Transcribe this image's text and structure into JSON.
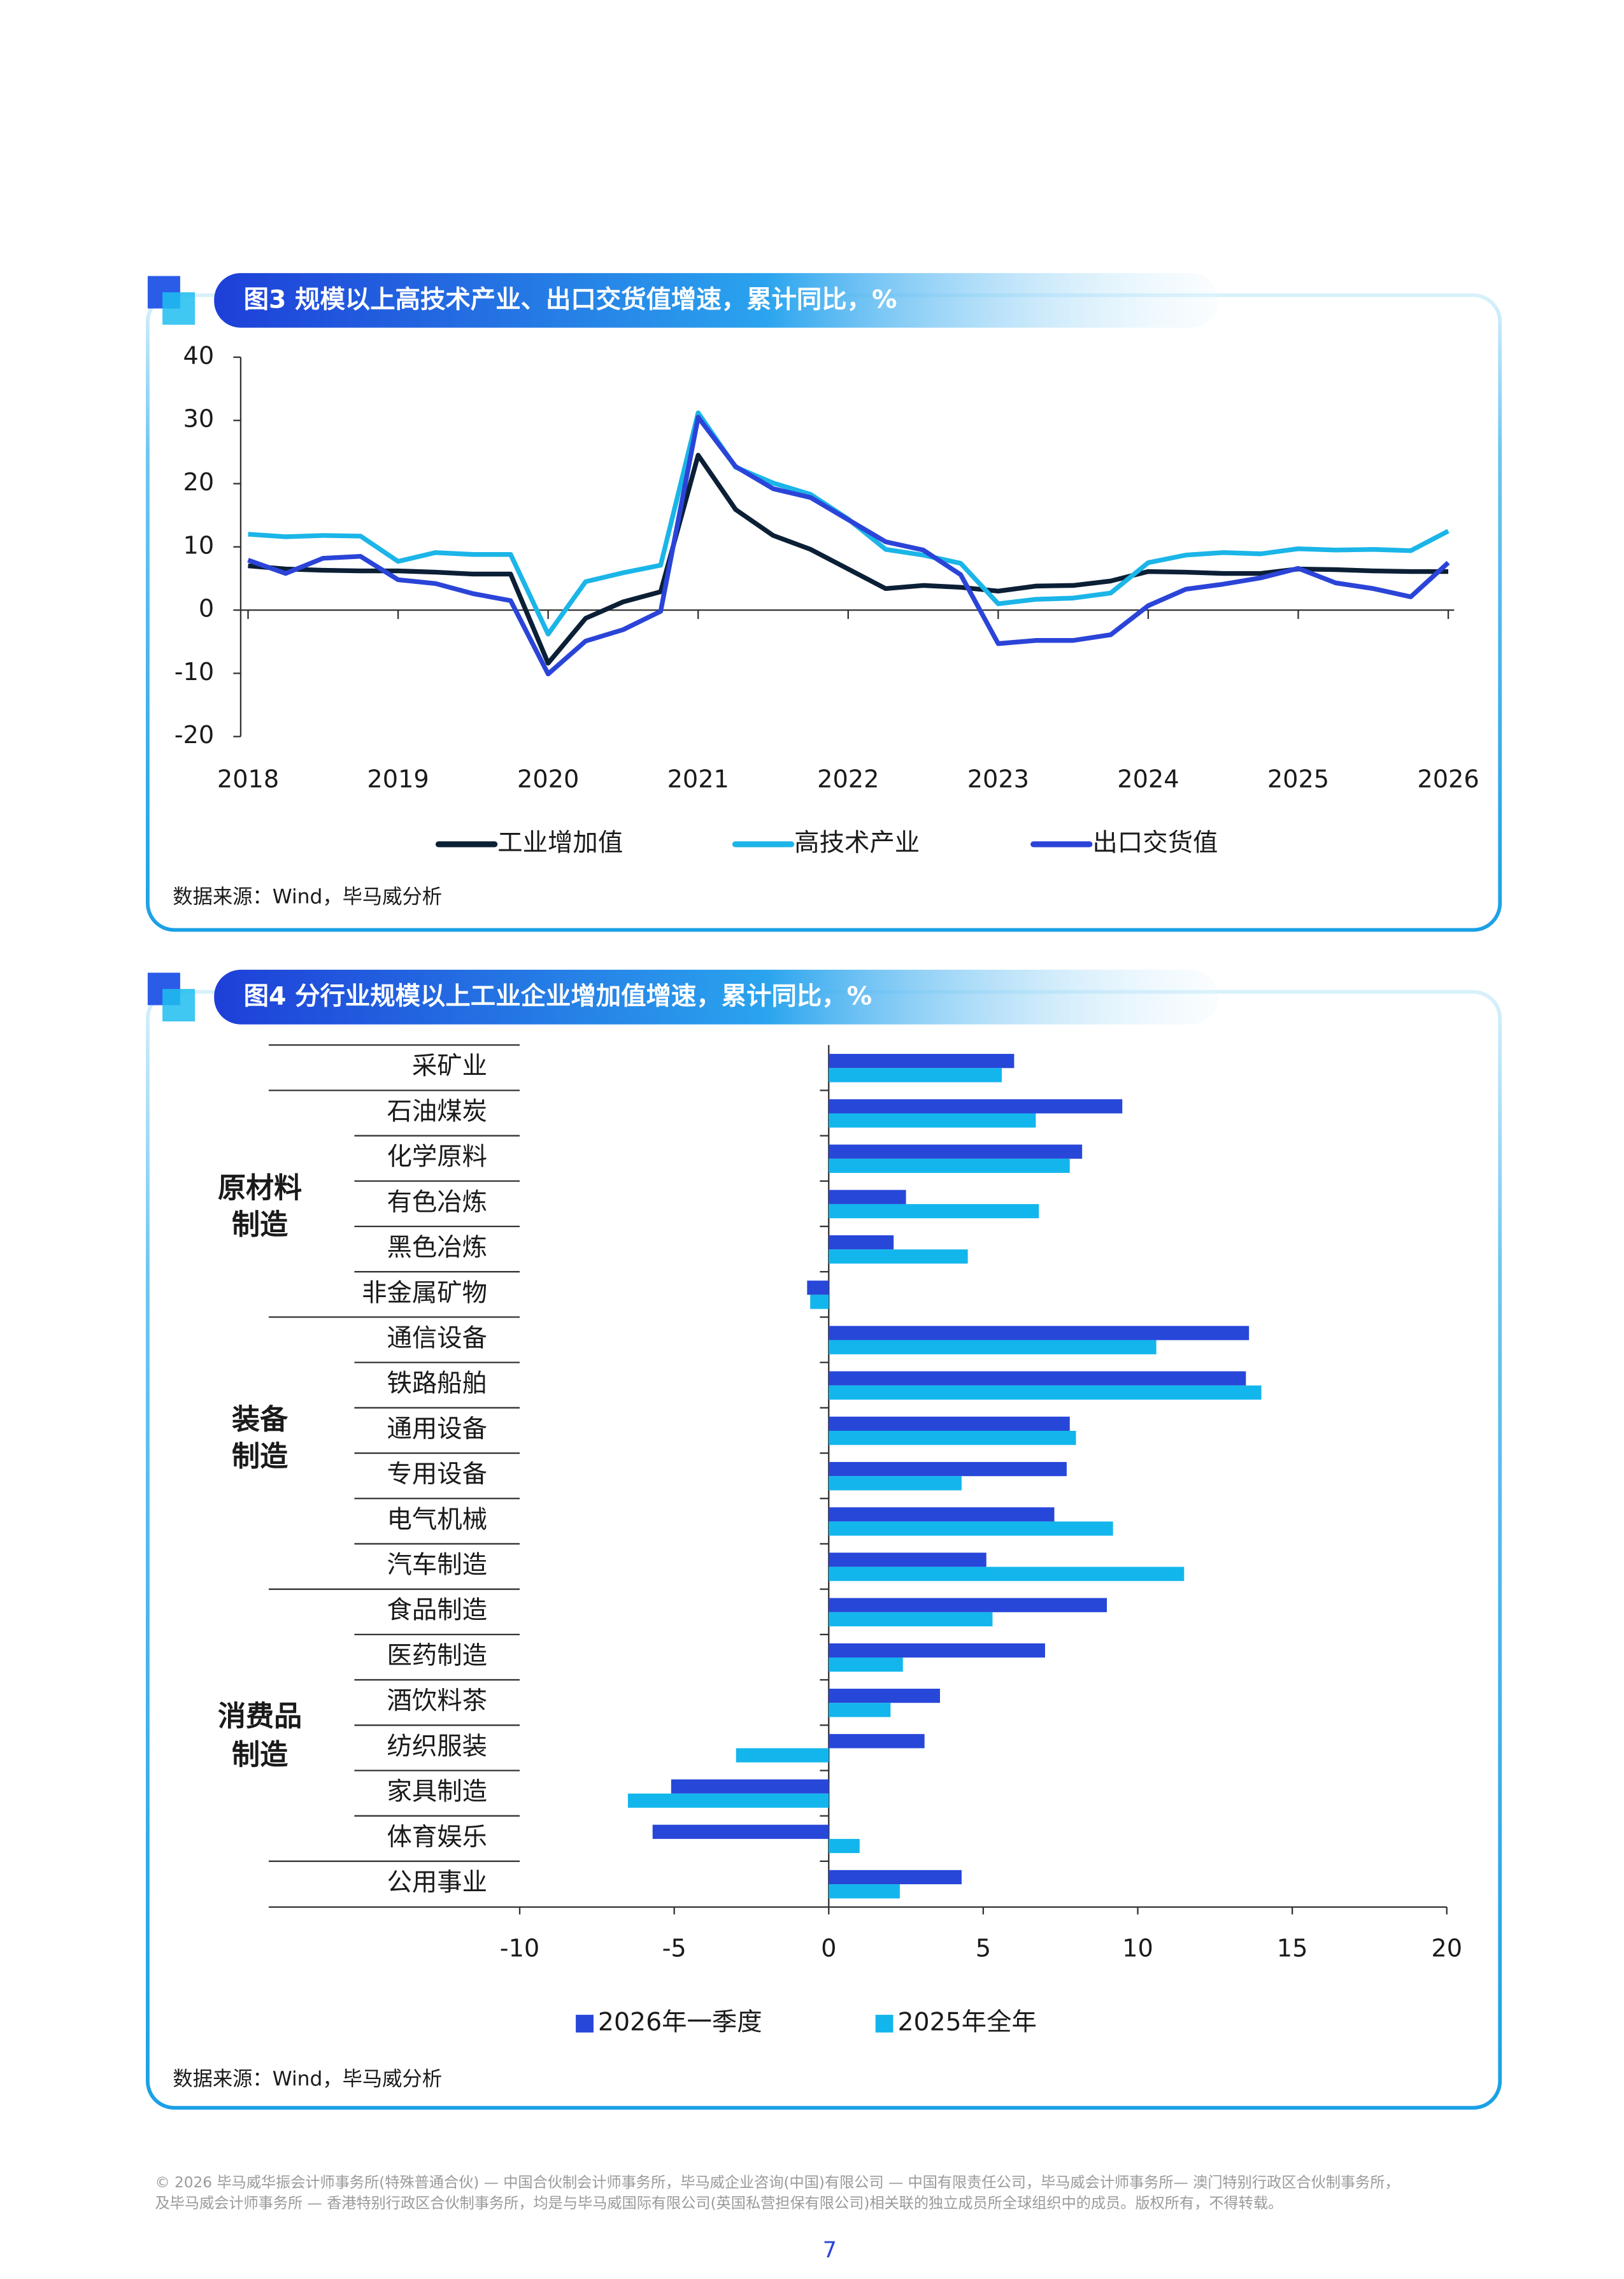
{
  "chart_data": [
    {
      "type": "line",
      "title": "图3 规模以上高技术产业、出口交货值增速，累计同比，%",
      "source": "数据来源：Wind，毕马威分析",
      "x": [
        2018,
        2018.25,
        2018.5,
        2018.75,
        2019,
        2019.25,
        2019.5,
        2019.75,
        2020,
        2020.25,
        2020.5,
        2020.75,
        2021,
        2021.25,
        2021.5,
        2021.75,
        2022,
        2022.25,
        2022.5,
        2022.75,
        2023,
        2023.25,
        2023.5,
        2023.75,
        2024,
        2024.25,
        2024.5,
        2024.75,
        2025,
        2025.25,
        2025.5,
        2025.75,
        2026
      ],
      "xlim": [
        2018,
        2026
      ],
      "xticks": [
        2018,
        2019,
        2020,
        2021,
        2022,
        2023,
        2024,
        2025,
        2026
      ],
      "ylim": [
        -20,
        40
      ],
      "yticks": [
        -20,
        -10,
        0,
        10,
        20,
        30,
        40
      ],
      "grid": false,
      "legend": "bottom",
      "series": [
        {
          "name": "工业增加值",
          "color": "#0b1f35",
          "values": [
            7,
            6.5,
            6.3,
            6.2,
            6.2,
            6.0,
            5.7,
            5.7,
            -8.4,
            -1.3,
            1.3,
            2.9,
            24.5,
            15.9,
            11.8,
            9.6,
            6.5,
            3.4,
            3.9,
            3.6,
            3.0,
            3.8,
            3.9,
            4.6,
            6.1,
            6.0,
            5.8,
            5.8,
            6.5,
            6.4,
            6.2,
            6.1,
            6.1
          ]
        },
        {
          "name": "高技术产业",
          "color": "#1bb5e8",
          "values": [
            12,
            11.6,
            11.8,
            11.7,
            7.7,
            9.1,
            8.8,
            8.8,
            -3.8,
            4.5,
            5.9,
            7.1,
            31.2,
            22.6,
            20.1,
            18.3,
            14.4,
            9.6,
            8.7,
            7.4,
            1.0,
            1.7,
            1.9,
            2.7,
            7.5,
            8.7,
            9.1,
            8.9,
            9.7,
            9.5,
            9.6,
            9.4,
            12.5
          ]
        },
        {
          "name": "出口交货值",
          "color": "#2b44d8",
          "values": [
            7.9,
            5.8,
            8.2,
            8.5,
            4.8,
            4.2,
            2.6,
            1.5,
            -10.1,
            -4.9,
            -3.1,
            -0.2,
            30.5,
            22.7,
            19.2,
            17.8,
            14.3,
            10.8,
            9.5,
            5.6,
            -5.3,
            -4.8,
            -4.8,
            -3.9,
            0.7,
            3.3,
            4.1,
            5.1,
            6.6,
            4.3,
            3.4,
            2.1,
            7.5
          ]
        }
      ]
    },
    {
      "type": "hbar",
      "title": "图4 分行业规模以上工业企业增加值增速，累计同比，%",
      "source": "数据来源：Wind，毕马威分析",
      "categories": [
        "采矿业",
        "石油煤炭",
        "化学原料",
        "有色冶炼",
        "黑色冶炼",
        "非金属矿物",
        "通信设备",
        "铁路船舶",
        "通用设备",
        "专用设备",
        "电气机械",
        "汽车制造",
        "食品制造",
        "医药制造",
        "酒饮料茶",
        "纺织服装",
        "家具制造",
        "体育娱乐",
        "公用事业"
      ],
      "group_labels": [
        [
          "原材料",
          "制造"
        ],
        [
          "装备",
          "制造"
        ],
        [
          "消费品",
          "制造"
        ]
      ],
      "xlim": [
        -10,
        20
      ],
      "xticks": [
        -10,
        -5,
        0,
        5,
        10,
        15,
        20
      ],
      "legend": "bottom",
      "series": [
        {
          "name": "2026年一季度",
          "color": "#2747d9",
          "values": [
            6.0,
            9.5,
            8.2,
            2.5,
            2.1,
            -0.7,
            13.6,
            13.5,
            7.8,
            7.7,
            7.3,
            5.1,
            9.0,
            7.0,
            3.6,
            3.1,
            -5.1,
            -5.7,
            4.3
          ]
        },
        {
          "name": "2025年全年",
          "color": "#13b6ec",
          "values": [
            5.6,
            6.7,
            7.8,
            6.8,
            4.5,
            -0.6,
            10.6,
            14.0,
            8.0,
            4.3,
            9.2,
            11.5,
            5.3,
            2.4,
            2.0,
            -3.0,
            -6.5,
            1.0,
            2.3
          ]
        }
      ]
    }
  ],
  "footer": {
    "copyright": [
      "© 2026 毕马威华振会计师事务所(特殊普通合伙) — 中国合伙制会计师事务所，毕马威企业咨询(中国)有限公司 — 中国有限责任公司，毕马威会计师事务所— 澳门特别行政区合伙制事务所，",
      "及毕马威会计师事务所 — 香港特别行政区合伙制事务所，均是与毕马威国际有限公司(英国私营担保有限公司)相关联的独立成员所全球组织中的成员。版权所有，不得转载。"
    ],
    "page": "7"
  }
}
